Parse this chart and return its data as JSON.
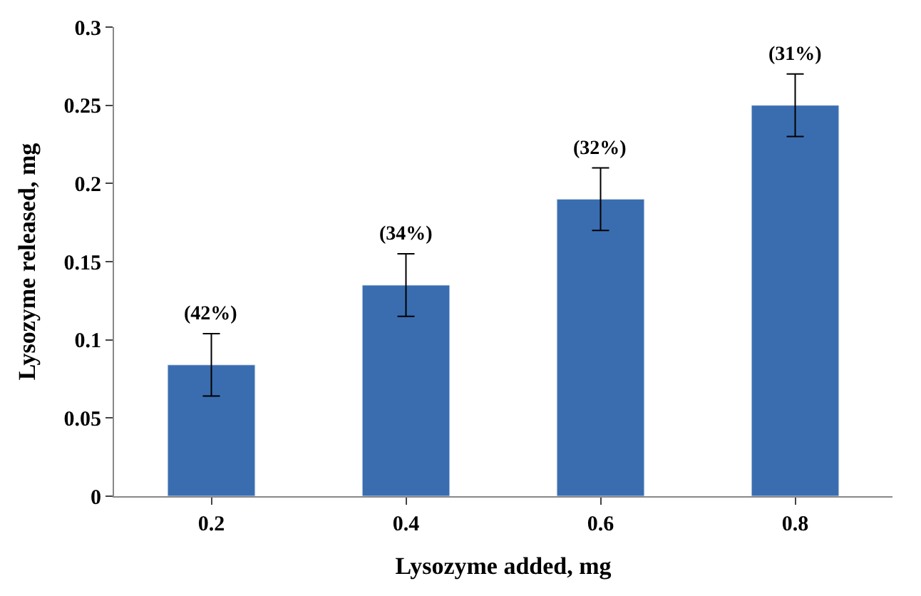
{
  "chart_data": {
    "type": "bar",
    "xlabel": "Lysozyme added, mg",
    "ylabel": "Lysozyme released, mg",
    "categories": [
      "0.2",
      "0.4",
      "0.6",
      "0.8"
    ],
    "values": [
      0.084,
      0.135,
      0.19,
      0.25
    ],
    "errors": [
      0.02,
      0.02,
      0.02,
      0.02
    ],
    "annotations": [
      {
        "text": "(42%)",
        "x": "0.2",
        "y": 0.104
      },
      {
        "text": "(34%)",
        "x": "0.4",
        "y": 0.155
      },
      {
        "text": "(32%)",
        "x": "0.6",
        "y": 0.21
      },
      {
        "text": "(31%)",
        "x": "0.8",
        "y": 0.27
      }
    ],
    "color": "#3a6db0",
    "ylim": [
      0,
      0.3
    ],
    "yticks": [
      {
        "value": 0,
        "label": "0"
      },
      0.05,
      0.1,
      0.15,
      0.2,
      0.25,
      0.3
    ]
  }
}
